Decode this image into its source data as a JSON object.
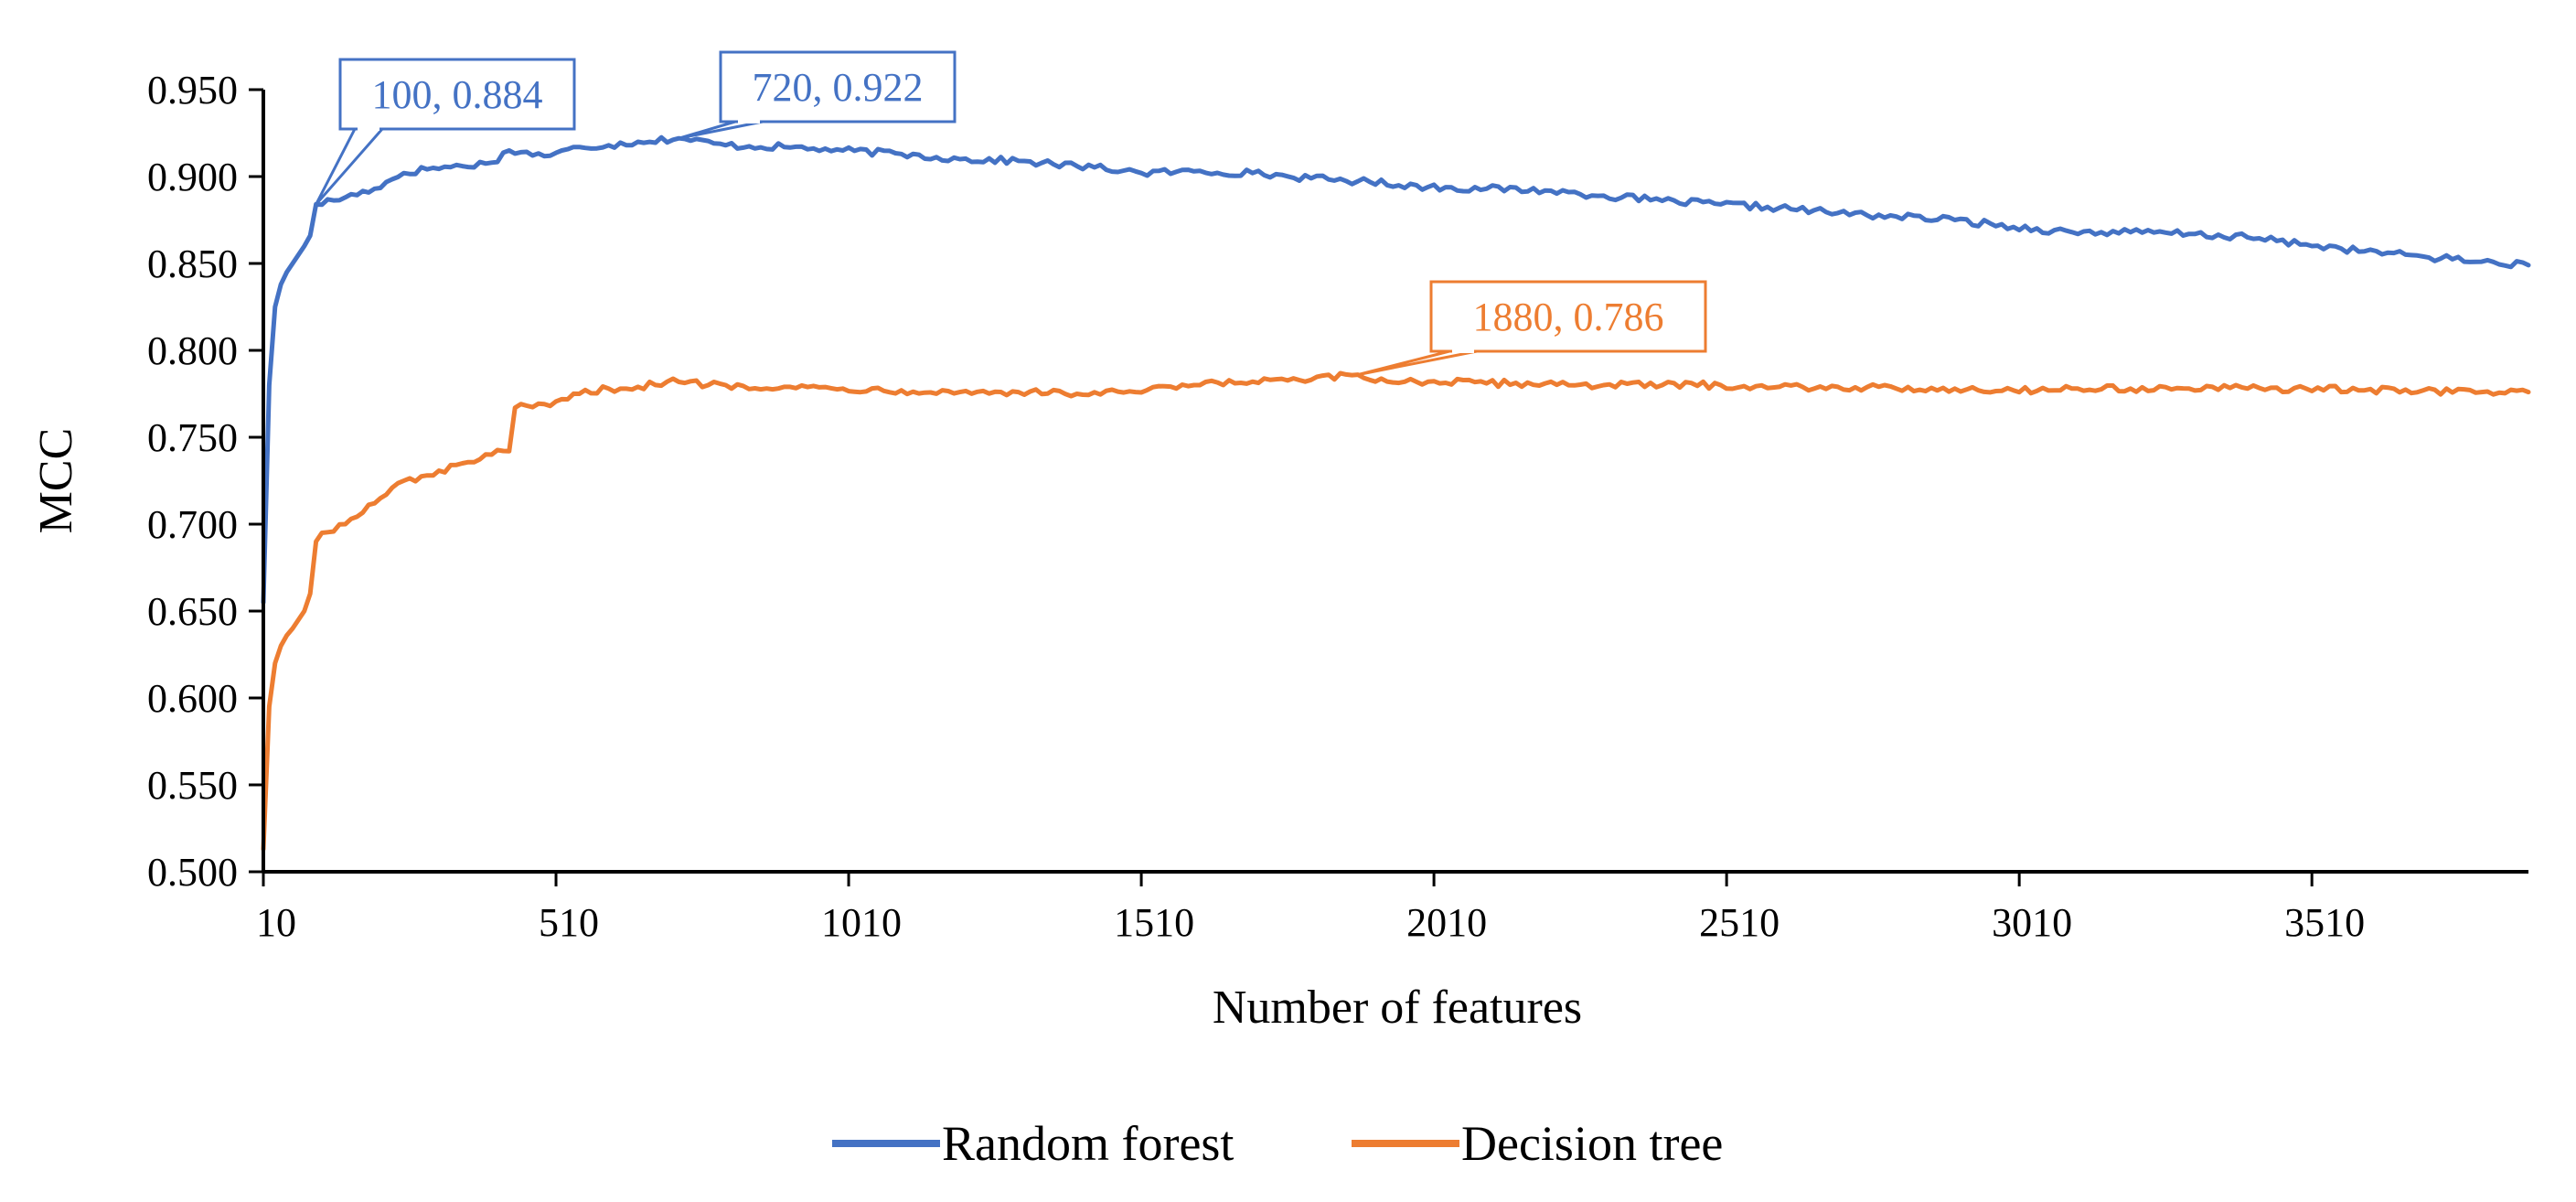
{
  "chart_data": {
    "type": "line",
    "title": "",
    "xlabel": "Number of features",
    "ylabel": "MCC",
    "xlim": [
      10,
      3880
    ],
    "ylim": [
      0.5,
      0.95
    ],
    "x_ticks": [
      10,
      510,
      1010,
      1510,
      2010,
      2510,
      3010,
      3510
    ],
    "x_tick_labels": [
      "10",
      "510",
      "1010",
      "1510",
      "2010",
      "2510",
      "3010",
      "3510"
    ],
    "y_ticks": [
      0.5,
      0.55,
      0.6,
      0.65,
      0.7,
      0.75,
      0.8,
      0.85,
      0.9,
      0.95
    ],
    "y_tick_labels": [
      "0.500",
      "0.550",
      "0.600",
      "0.650",
      "0.700",
      "0.750",
      "0.800",
      "0.850",
      "0.900",
      "0.950"
    ],
    "grid": false,
    "legend_position": "bottom-center",
    "series": [
      {
        "name": "Random forest",
        "color": "#4472C4",
        "x": [
          10,
          20,
          30,
          40,
          50,
          60,
          70,
          80,
          90,
          100,
          150,
          200,
          250,
          300,
          350,
          400,
          430,
          450,
          500,
          550,
          600,
          650,
          720,
          800,
          900,
          1000,
          1100,
          1200,
          1300,
          1400,
          1500,
          1510,
          1600,
          1700,
          1800,
          1900,
          2000,
          2100,
          2200,
          2300,
          2400,
          2500,
          2600,
          2700,
          2800,
          2900,
          3000,
          3100,
          3200,
          3300,
          3400,
          3500,
          3600,
          3700,
          3800,
          3880
        ],
        "values": [
          0.655,
          0.78,
          0.825,
          0.838,
          0.845,
          0.85,
          0.855,
          0.86,
          0.866,
          0.884,
          0.888,
          0.893,
          0.902,
          0.905,
          0.906,
          0.908,
          0.915,
          0.914,
          0.912,
          0.917,
          0.918,
          0.92,
          0.922,
          0.918,
          0.917,
          0.915,
          0.913,
          0.91,
          0.909,
          0.906,
          0.903,
          0.902,
          0.903,
          0.902,
          0.899,
          0.897,
          0.894,
          0.893,
          0.892,
          0.889,
          0.886,
          0.884,
          0.882,
          0.879,
          0.877,
          0.875,
          0.871,
          0.868,
          0.868,
          0.867,
          0.865,
          0.861,
          0.857,
          0.854,
          0.851,
          0.849
        ]
      },
      {
        "name": "Decision tree",
        "color": "#ED7D31",
        "x": [
          10,
          20,
          30,
          40,
          50,
          60,
          70,
          80,
          90,
          100,
          110,
          150,
          200,
          250,
          300,
          350,
          400,
          430,
          440,
          500,
          550,
          600,
          650,
          700,
          800,
          900,
          1000,
          1100,
          1200,
          1300,
          1400,
          1500,
          1600,
          1700,
          1800,
          1880,
          1900,
          2000,
          2100,
          2200,
          2300,
          2400,
          2500,
          2600,
          2700,
          2800,
          2900,
          3000,
          3100,
          3200,
          3300,
          3400,
          3500,
          3600,
          3700,
          3800,
          3880
        ],
        "values": [
          0.513,
          0.595,
          0.62,
          0.63,
          0.636,
          0.64,
          0.645,
          0.65,
          0.66,
          0.69,
          0.695,
          0.7,
          0.712,
          0.725,
          0.728,
          0.735,
          0.74,
          0.742,
          0.767,
          0.768,
          0.775,
          0.778,
          0.779,
          0.782,
          0.78,
          0.779,
          0.778,
          0.777,
          0.776,
          0.776,
          0.775,
          0.776,
          0.78,
          0.782,
          0.783,
          0.786,
          0.783,
          0.782,
          0.781,
          0.781,
          0.78,
          0.78,
          0.78,
          0.779,
          0.779,
          0.778,
          0.778,
          0.777,
          0.778,
          0.778,
          0.778,
          0.778,
          0.778,
          0.777,
          0.777,
          0.776,
          0.776
        ]
      }
    ],
    "annotations": [
      {
        "text": "100, 0.884",
        "series": "Random forest",
        "x": 100,
        "y": 0.884,
        "color": "#4472C4"
      },
      {
        "text": "720, 0.922",
        "series": "Random forest",
        "x": 720,
        "y": 0.922,
        "color": "#4472C4"
      },
      {
        "text": "1880, 0.786",
        "series": "Decision tree",
        "x": 1880,
        "y": 0.786,
        "color": "#ED7D31"
      }
    ]
  }
}
